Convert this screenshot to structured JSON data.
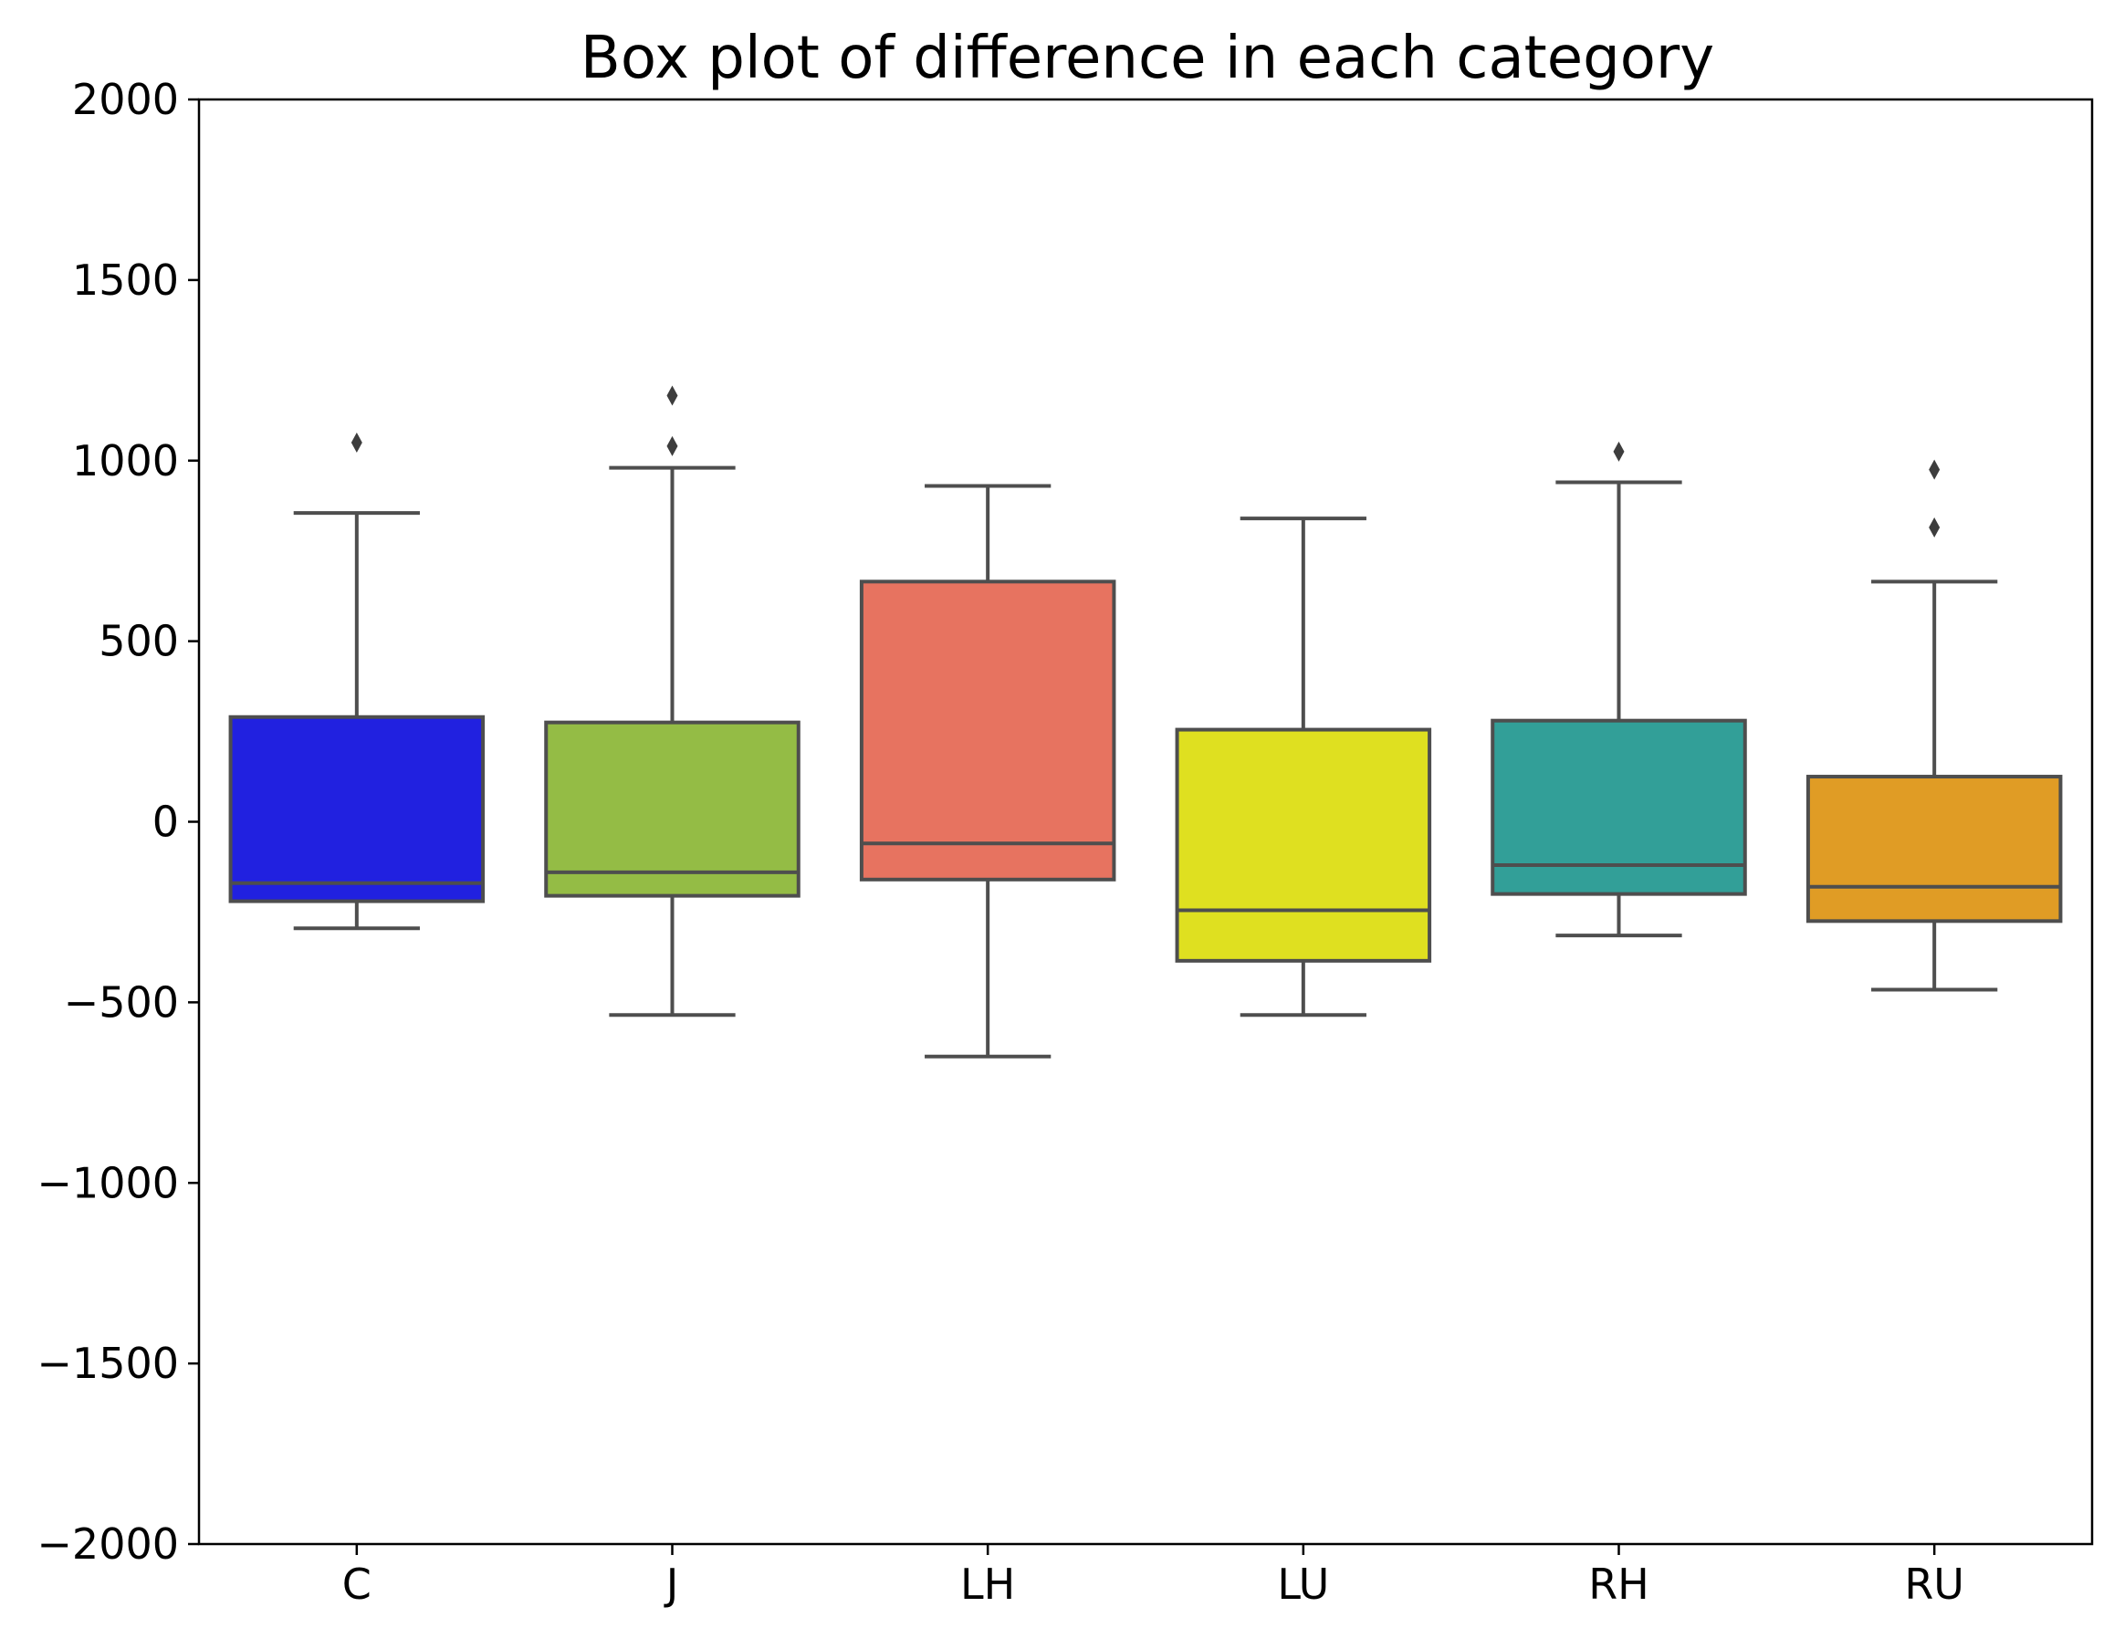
{
  "chart_data": {
    "type": "box",
    "title": "Box plot of difference in each category",
    "xlabel": "",
    "ylabel": "",
    "ylim": [
      -2000,
      2000
    ],
    "yticks": [
      2000,
      1500,
      1000,
      500,
      0,
      -500,
      -1000,
      -1500,
      -2000
    ],
    "ytick_labels": [
      "2000",
      "1500",
      "1000",
      "500",
      "0",
      "−500",
      "−1000",
      "−1500",
      "−2000"
    ],
    "grid": false,
    "categories": [
      "C",
      "J",
      "LH",
      "LU",
      "RH",
      "RU"
    ],
    "boxes": [
      {
        "category": "C",
        "color": "#2121e0",
        "whisker_low": -295,
        "q1": -220,
        "median": -170,
        "q3": 290,
        "whisker_high": 855,
        "outliers": [
          1050
        ]
      },
      {
        "category": "J",
        "color": "#94bc45",
        "whisker_low": -535,
        "q1": -205,
        "median": -140,
        "q3": 275,
        "whisker_high": 980,
        "outliers": [
          1180,
          1040
        ]
      },
      {
        "category": "LH",
        "color": "#e77360",
        "whisker_low": -650,
        "q1": -160,
        "median": -60,
        "q3": 665,
        "whisker_high": 930,
        "outliers": []
      },
      {
        "category": "LU",
        "color": "#dfe020",
        "whisker_low": -535,
        "q1": -385,
        "median": -245,
        "q3": 255,
        "whisker_high": 840,
        "outliers": []
      },
      {
        "category": "RH",
        "color": "#329f98",
        "whisker_low": -315,
        "q1": -200,
        "median": -120,
        "q3": 280,
        "whisker_high": 940,
        "outliers": [
          1025
        ]
      },
      {
        "category": "RU",
        "color": "#e09c25",
        "whisker_low": -465,
        "q1": -275,
        "median": -180,
        "q3": 125,
        "whisker_high": 665,
        "outliers": [
          975,
          815
        ]
      }
    ],
    "line_color": "#4e4e4e"
  }
}
